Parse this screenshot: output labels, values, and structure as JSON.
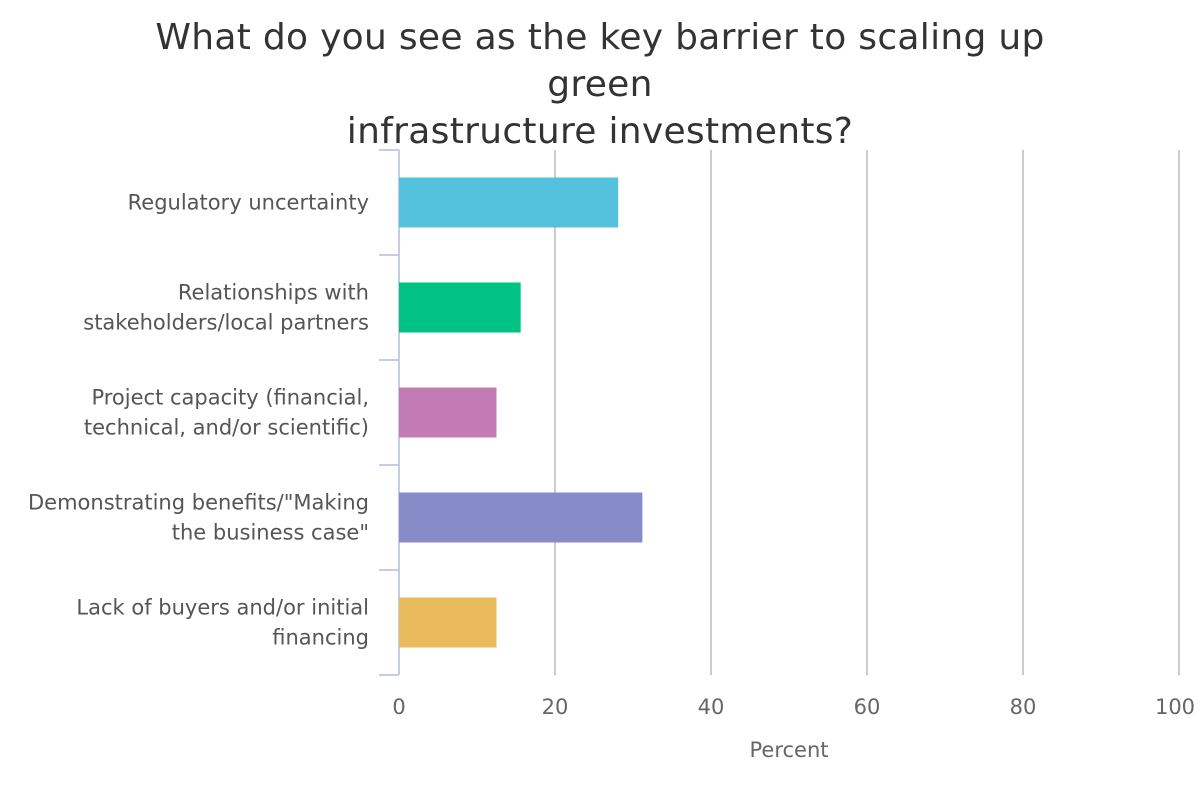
{
  "chart_data": {
    "type": "bar",
    "orientation": "horizontal",
    "title": "What do you see as the key barrier to scaling up green infrastructure investments?",
    "title_lines": [
      "What do you see as the key barrier to scaling up green",
      "infrastructure investments?"
    ],
    "xlabel": "Percent",
    "ylabel": "",
    "xlim": [
      0,
      100
    ],
    "ticks": [
      "0",
      "20",
      "40",
      "60",
      "80",
      "100"
    ],
    "grid": true,
    "legend": "none",
    "categories": [
      "Regulatory uncertainty",
      "Relationships with stakeholders/local partners",
      "Project capacity (financial, technical, and/or scientific)",
      "Demonstrating benefits/\"Making the business case\"",
      "Lack of buyers and/or initial financing"
    ],
    "category_lines": [
      [
        "Regulatory uncertainty"
      ],
      [
        "Relationships with",
        "stakeholders/local partners"
      ],
      [
        "Project capacity (financial,",
        "technical, and/or scientific)"
      ],
      [
        "Demonstrating benefits/\"Making",
        "the business case\""
      ],
      [
        "Lack of buyers and/or initial",
        "financing"
      ]
    ],
    "values": [
      28.1,
      15.6,
      12.5,
      31.2,
      12.5
    ],
    "colors": [
      "#54c2dc",
      "#00c383",
      "#c37cb3",
      "#878bc8",
      "#e9bb5c"
    ]
  }
}
